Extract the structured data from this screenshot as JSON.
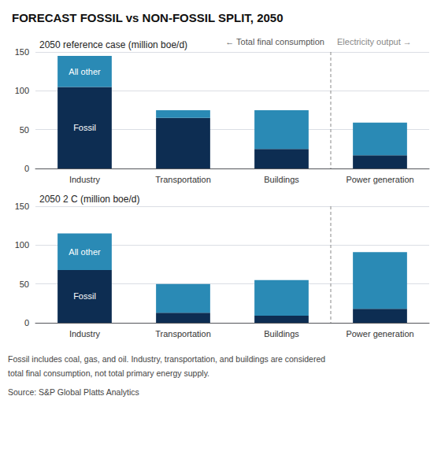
{
  "chart_data": [
    {
      "type": "bar",
      "title": "FORECAST FOSSIL vs NON-FOSSIL SPLIT, 2050",
      "subtitle": "2050 reference case (million boe/d)",
      "annotations": [
        "← Total final consumption",
        "Electricity output →"
      ],
      "categories": [
        "Industry",
        "Transportation",
        "Buildings",
        "Power generation"
      ],
      "series": [
        {
          "name": "Fossil",
          "color": "#0d2d52",
          "values": [
            105,
            65,
            25,
            17
          ]
        },
        {
          "name": "All other",
          "color": "#2a8ab5",
          "values": [
            40,
            10,
            50,
            42
          ]
        }
      ],
      "stacked": true,
      "ylim": [
        0,
        150
      ],
      "yticks": [
        0,
        50,
        100,
        150
      ],
      "grid": true
    },
    {
      "type": "bar",
      "subtitle": "2050 2 C (million boe/d)",
      "annotations": [
        "Fossil includes coal, gas, and oil. Industry, transportation, and buildings are considered",
        "total final consumption, not total primary energy supply.",
        "Source: S&P Global Platts Analytics"
      ],
      "categories": [
        "Industry",
        "Transportation",
        "Buildings",
        "Power generation"
      ],
      "series": [
        {
          "name": "Fossil",
          "color": "#0d2d52",
          "values": [
            68,
            13,
            9,
            18
          ]
        },
        {
          "name": "All other",
          "color": "#2a8ab5",
          "values": [
            47,
            37,
            46,
            73
          ]
        }
      ],
      "stacked": true,
      "ylim": [
        0,
        150
      ],
      "yticks": [
        0,
        50,
        100,
        150
      ],
      "grid": true
    }
  ]
}
